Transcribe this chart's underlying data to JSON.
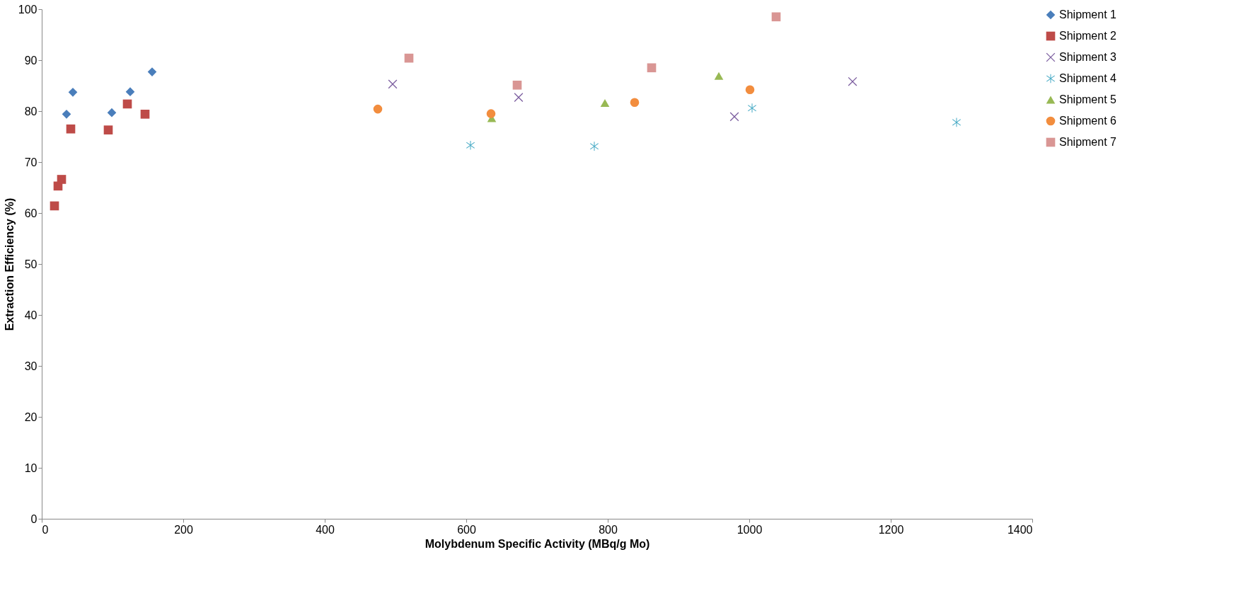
{
  "chart_data": {
    "type": "scatter",
    "xlabel": "Molybdenum Specific Activity (MBq/g Mo)",
    "ylabel": "Extraction Efficiency (%)",
    "xlim": [
      0,
      1400
    ],
    "xticks": [
      0,
      200,
      400,
      600,
      800,
      1000,
      1200,
      1400
    ],
    "ylim": [
      0,
      100
    ],
    "yticks": [
      0,
      10,
      20,
      30,
      40,
      50,
      60,
      70,
      80,
      90,
      100
    ],
    "grid": false,
    "legend": "right",
    "series": [
      {
        "name": "Shipment 1",
        "color": "#4a7ebb",
        "marker": "diamond",
        "x": [
          35,
          44,
          99,
          125,
          156
        ],
        "values": [
          79.4,
          83.7,
          79.7,
          83.8,
          87.7
        ]
      },
      {
        "name": "Shipment 2",
        "color": "#be4b48",
        "marker": "square",
        "x": [
          18,
          23,
          28,
          41,
          94,
          121,
          146
        ],
        "values": [
          61.4,
          65.3,
          66.6,
          76.5,
          76.3,
          81.4,
          79.4
        ]
      },
      {
        "name": "Shipment 3",
        "color": "#7d5fa0",
        "marker": "cross",
        "x": [
          496,
          674,
          979,
          1146
        ],
        "values": [
          85.3,
          82.7,
          78.9,
          85.8
        ]
      },
      {
        "name": "Shipment 4",
        "color": "#46aac5",
        "x": [
          606,
          781,
          1004,
          1293
        ],
        "values": [
          73.3,
          73.1,
          80.6,
          77.8
        ]
      },
      {
        "name": "Shipment 5",
        "color": "#98b954",
        "marker": "triangle",
        "x": [
          636,
          796,
          957
        ],
        "values": [
          78.6,
          81.6,
          86.9
        ]
      },
      {
        "name": "Shipment 6",
        "color": "#f28d3e",
        "marker": "circle",
        "x": [
          475,
          635,
          838,
          1001
        ],
        "values": [
          80.4,
          79.5,
          81.7,
          84.2
        ]
      },
      {
        "name": "Shipment 7",
        "color": "#d99694",
        "marker": "square",
        "x": [
          519,
          672,
          862,
          1038
        ],
        "values": [
          90.4,
          85.1,
          88.5,
          98.5
        ]
      }
    ]
  }
}
